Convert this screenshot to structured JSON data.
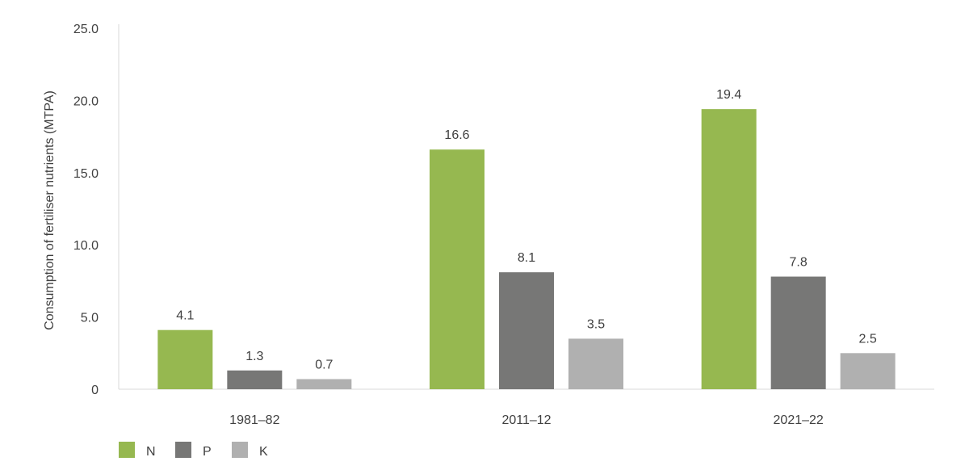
{
  "chart_data": {
    "type": "bar",
    "title": "",
    "xlabel": "",
    "ylabel": "Consumption of fertiliser nutrients (MTPA)",
    "ylim": [
      0,
      25
    ],
    "yticks": [
      0,
      5,
      10,
      15,
      20,
      25
    ],
    "ytick_labels": [
      "0",
      "5.0",
      "10.0",
      "15.0",
      "20.0",
      "25.0"
    ],
    "categories": [
      "1981–82",
      "2011–12",
      "2021–22"
    ],
    "series": [
      {
        "name": "N",
        "color": "#96b850",
        "values": [
          4.1,
          16.6,
          19.4
        ]
      },
      {
        "name": "P",
        "color": "#777776",
        "values": [
          1.3,
          8.1,
          7.8
        ]
      },
      {
        "name": "K",
        "color": "#b0b0b0",
        "values": [
          0.7,
          3.5,
          2.5
        ]
      }
    ],
    "legend_position": "bottom-left",
    "grid": false
  }
}
